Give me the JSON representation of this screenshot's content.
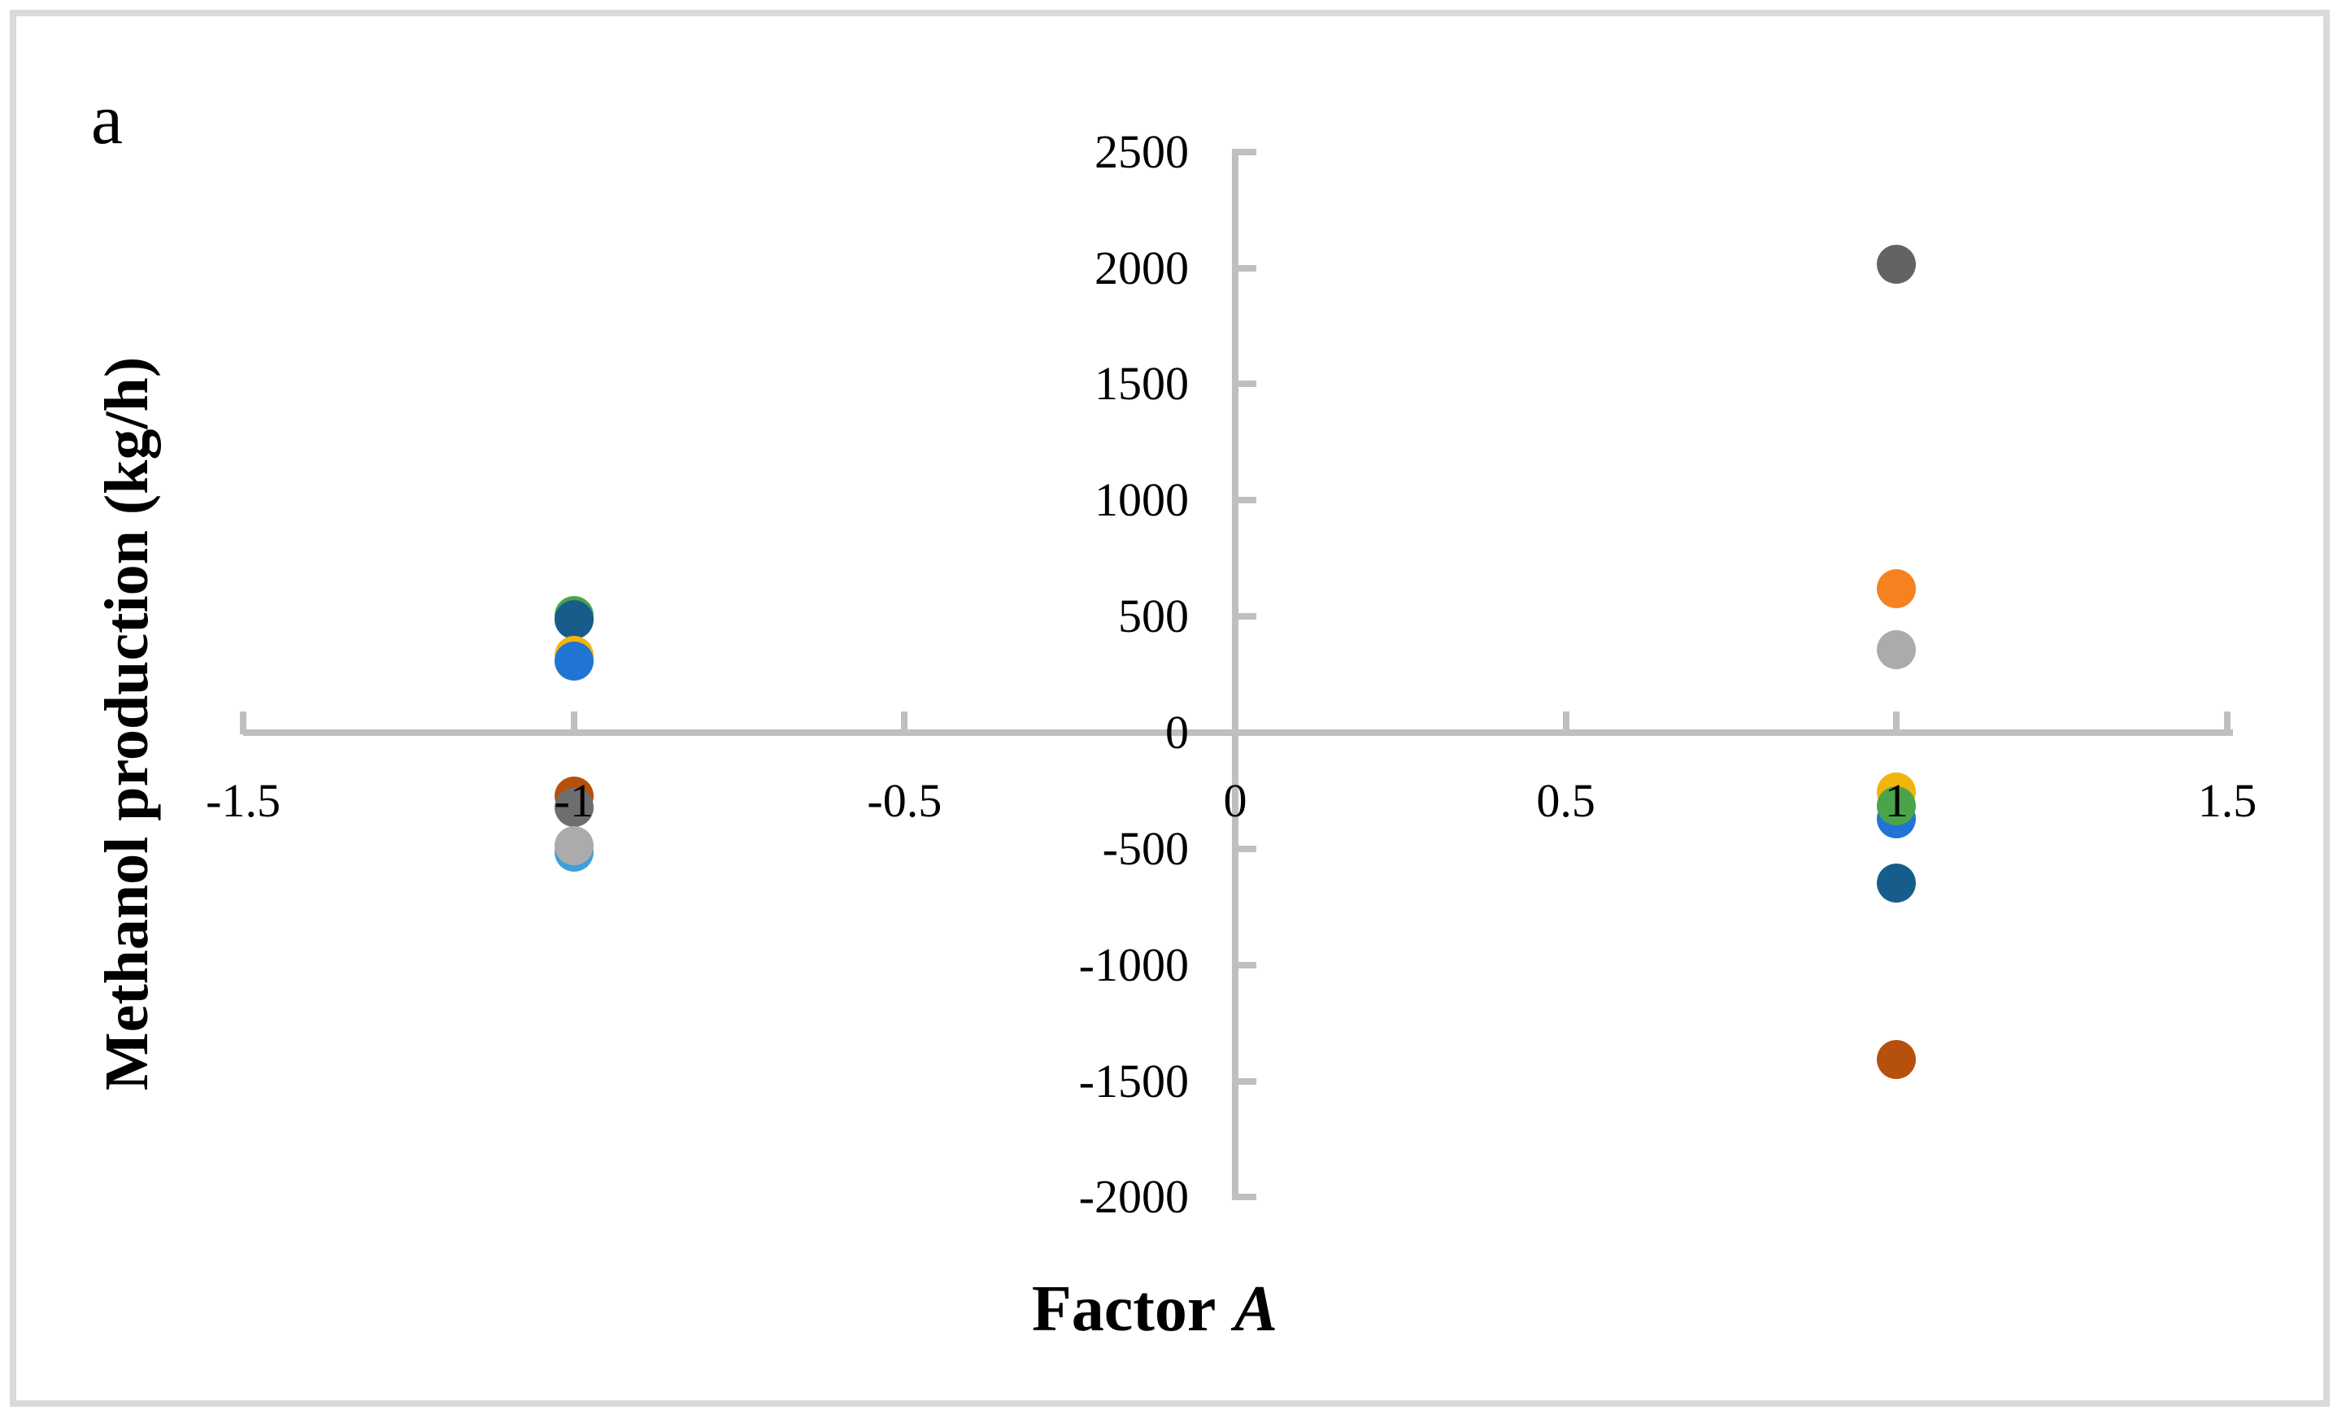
{
  "chart_data": {
    "type": "scatter",
    "panel_label": "a",
    "xlabel": {
      "prefix": "Factor",
      "variable": "A"
    },
    "ylabel": "Methanol production (kg/h)",
    "xlim": [
      -1.5,
      1.5
    ],
    "ylim": [
      -2000,
      2500
    ],
    "grid": "off",
    "legend": "none",
    "axis_color": "#BFBFBF",
    "frame_color": "#D9D9D9",
    "x_ticks": [
      {
        "value": -1.5,
        "label": "-1.5"
      },
      {
        "value": -1,
        "label": "-1"
      },
      {
        "value": -0.5,
        "label": "-0.5"
      },
      {
        "value": 0,
        "label": "0"
      },
      {
        "value": 0.5,
        "label": "0.5"
      },
      {
        "value": 1,
        "label": "1"
      },
      {
        "value": 1.5,
        "label": "1.5"
      }
    ],
    "y_ticks": [
      {
        "value": 2500,
        "label": "2500"
      },
      {
        "value": 2000,
        "label": "2000"
      },
      {
        "value": 1500,
        "label": "1500"
      },
      {
        "value": 1000,
        "label": "1000"
      },
      {
        "value": 500,
        "label": "500"
      },
      {
        "value": 0,
        "label": "0"
      },
      {
        "value": -500,
        "label": "-500"
      },
      {
        "value": -1000,
        "label": "-1000"
      },
      {
        "value": -1500,
        "label": "-1500"
      },
      {
        "value": -2000,
        "label": "-2000"
      }
    ],
    "series_colors": {
      "green": "#4CA44A",
      "dark-cerulean": "#175D8B",
      "yellow": "#F2B50D",
      "bright-blue": "#2174D3",
      "brown": "#B5500D",
      "medium-gray": "#6E6E6E",
      "light-blue": "#3FA0DA",
      "light-gray": "#ABABAB",
      "dark-gray": "#636363",
      "orange": "#F6821F"
    },
    "points": [
      {
        "series": "green",
        "x": -1,
        "y": 505
      },
      {
        "series": "dark-cerulean",
        "x": -1,
        "y": 487
      },
      {
        "series": "yellow",
        "x": -1,
        "y": 333
      },
      {
        "series": "bright-blue",
        "x": -1,
        "y": 308
      },
      {
        "series": "brown",
        "x": -1,
        "y": -273
      },
      {
        "series": "medium-gray",
        "x": -1,
        "y": -322
      },
      {
        "series": "light-blue",
        "x": -1,
        "y": -515
      },
      {
        "series": "light-gray",
        "x": -1,
        "y": -487
      },
      {
        "series": "dark-gray",
        "x": 1,
        "y": 2016
      },
      {
        "series": "orange",
        "x": 1,
        "y": 620
      },
      {
        "series": "light-gray",
        "x": 1,
        "y": 357
      },
      {
        "series": "yellow",
        "x": 1,
        "y": -256
      },
      {
        "series": "bright-blue",
        "x": 1,
        "y": -371
      },
      {
        "series": "green",
        "x": 1,
        "y": -315
      },
      {
        "series": "dark-cerulean",
        "x": 1,
        "y": -648
      },
      {
        "series": "brown",
        "x": 1,
        "y": -1407
      }
    ]
  }
}
